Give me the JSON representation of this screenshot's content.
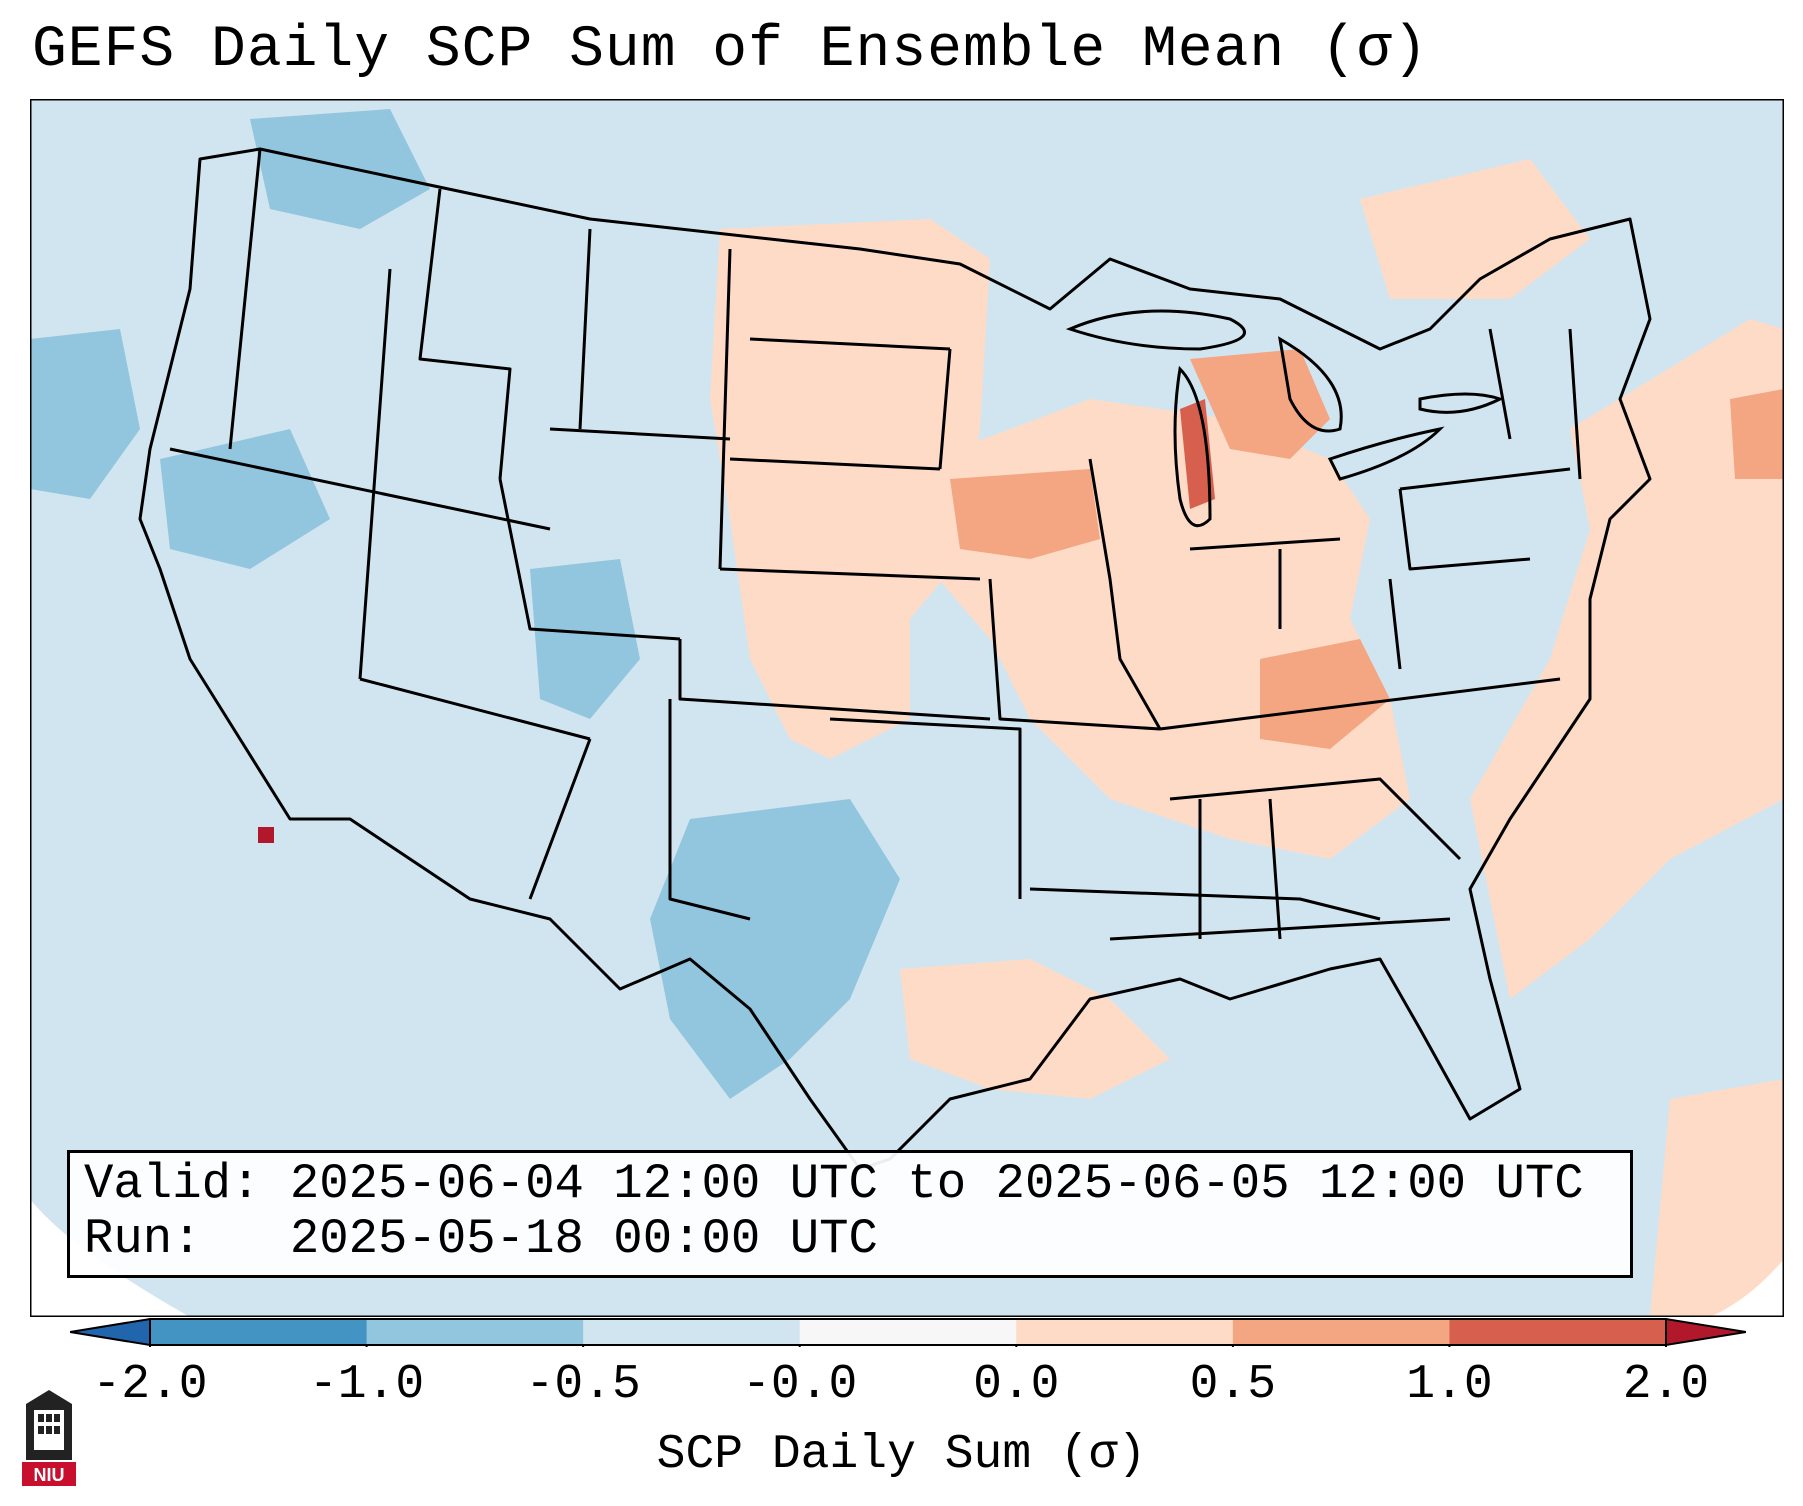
{
  "title": "GEFS Daily SCP Sum of Ensemble Mean (σ)",
  "info": {
    "valid_label": "Valid:",
    "valid_value": "2025-06-04 12:00 UTC to 2025-06-05 12:00 UTC",
    "run_label": "Run:",
    "run_value": "2025-05-18 00:00 UTC"
  },
  "colorbar": {
    "label": "SCP Daily Sum (σ)",
    "ticks": [
      "-2.0",
      "-1.0",
      "-0.5",
      "-0.0",
      "0.0",
      "0.5",
      "1.0",
      "2.0"
    ],
    "colors": [
      "#4393c3",
      "#92c5de",
      "#d1e5f0",
      "#f7f7f7",
      "#fddbc7",
      "#f4a582",
      "#d6604d"
    ],
    "under_color": "#2166ac",
    "over_color": "#b2182b"
  },
  "map": {
    "background_color": "#d1e5f0",
    "border_color": "#000000",
    "region": "Continental United States",
    "notable_anomalies": [
      {
        "area": "Lake Michigan / northern Michigan",
        "value_sigma": 0.75
      },
      {
        "area": "Iowa",
        "value_sigma": 0.6
      },
      {
        "area": "Kentucky / Tennessee",
        "value_sigma": 0.6
      },
      {
        "area": "New England offshore",
        "value_sigma": 1.2
      },
      {
        "area": "Southern California coast",
        "value_sigma": 2.2
      },
      {
        "area": "Texas",
        "value_sigma": -0.7
      },
      {
        "area": "Pacific Northwest",
        "value_sigma": -0.8
      }
    ]
  },
  "logo": {
    "text": "NIU"
  }
}
